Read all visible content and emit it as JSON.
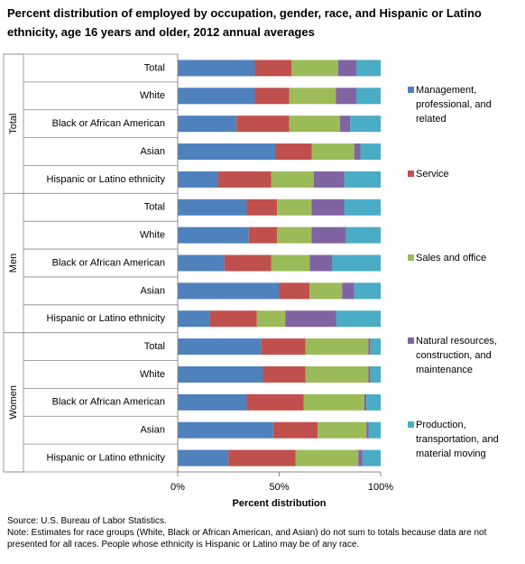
{
  "title": "Percent distribution of employed by occupation, gender, race, and Hispanic or Latino ethnicity, age 16 years and older, 2012 annual averages",
  "source": "Source: U.S. Bureau of Labor Statistics.",
  "note": "Note: Estimates for race groups (White, Black or African American, and Asian) do not sum to totals because data are not presented for all races.  People whose ethnicity is Hispanic or Latino may be of any race.",
  "chart_data": {
    "type": "bar",
    "orientation": "horizontal",
    "stacked": true,
    "xlabel": "Percent distribution",
    "xlim": [
      0,
      100
    ],
    "xticks": [
      "0%",
      "50%",
      "100%"
    ],
    "grid": false,
    "legend_position": "right",
    "groups": [
      {
        "name": "Total",
        "categories": [
          "Total",
          "White",
          "Black or African American",
          "Asian",
          "Hispanic or Latino ethnicity"
        ]
      },
      {
        "name": "Men",
        "categories": [
          "Total",
          "White",
          "Black or African American",
          "Asian",
          "Hispanic or Latino ethnicity"
        ]
      },
      {
        "name": "Women",
        "categories": [
          "Total",
          "White",
          "Black or African American",
          "Asian",
          "Hispanic or Latino ethnicity"
        ]
      }
    ],
    "series": [
      {
        "name": "Management, professional, and related",
        "color": "#4f81bd",
        "values": [
          38,
          38,
          29,
          48,
          20,
          34,
          35,
          23,
          50,
          16,
          41,
          42,
          34,
          47,
          25
        ]
      },
      {
        "name": "Service",
        "color": "#c0504d",
        "values": [
          18,
          17,
          26,
          18,
          26,
          15,
          14,
          23,
          15,
          23,
          22,
          21,
          28,
          22,
          33
        ]
      },
      {
        "name": "Sales and office",
        "color": "#9bbb59",
        "values": [
          23,
          23,
          25,
          21,
          21,
          17,
          17,
          19,
          16,
          14,
          31,
          31,
          30,
          24,
          31
        ]
      },
      {
        "name": "Natural resources, construction, and maintenance",
        "color": "#8064a2",
        "values": [
          9,
          10,
          5,
          3,
          15,
          16,
          17,
          11,
          6,
          25,
          1,
          1,
          1,
          1,
          2
        ]
      },
      {
        "name": "Production, transportation, and material moving",
        "color": "#4bacc6",
        "values": [
          12,
          12,
          15,
          10,
          18,
          18,
          17,
          24,
          13,
          22,
          5,
          5,
          7,
          6,
          9
        ]
      }
    ]
  }
}
